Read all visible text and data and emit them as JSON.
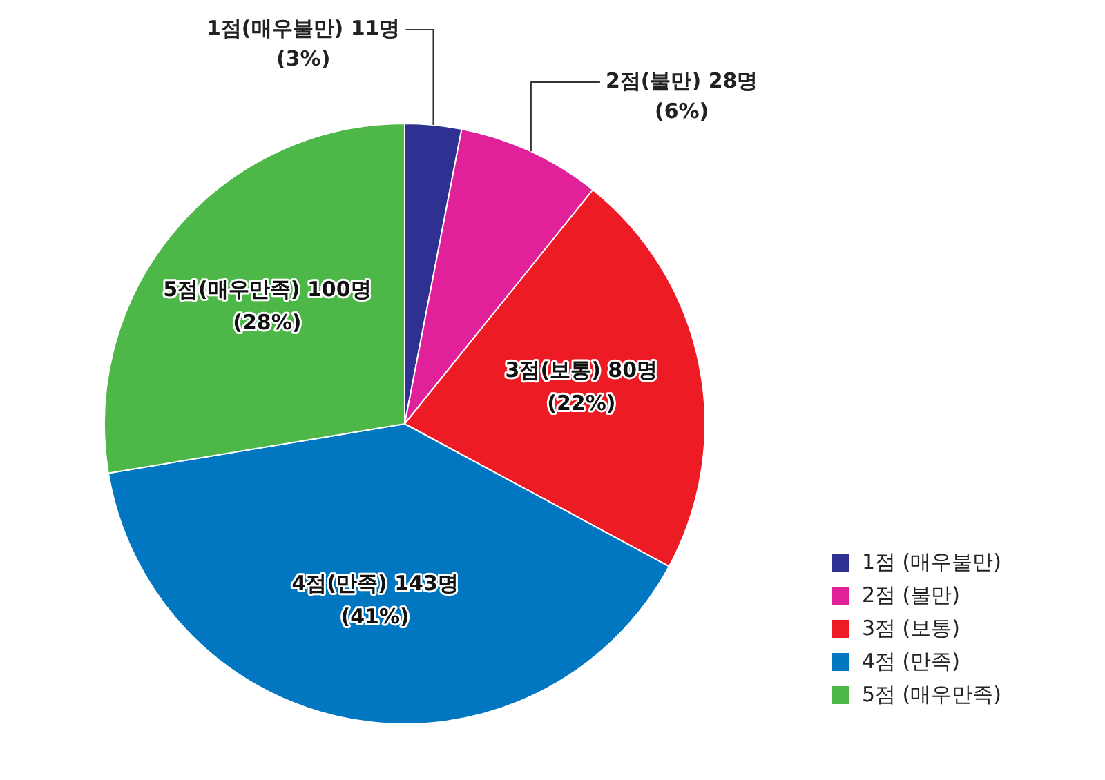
{
  "chart_data": {
    "type": "pie",
    "categories": [
      "1점 (매우불만)",
      "2점 (불만)",
      "3점 (보통)",
      "4점 (만족)",
      "5점 (매우만족)"
    ],
    "values": [
      11,
      28,
      80,
      143,
      100
    ],
    "colors": [
      "#2e3192",
      "#e0219a",
      "#ed1c24",
      "#0077c0",
      "#4db848"
    ],
    "value_labels": [
      "1점(매우불만) 11명\n(3%)",
      "2점(불만) 28명\n(6%)",
      "3점(보통) 80명\n(22%)",
      "4점(만족) 143명\n(41%)",
      "5점(매우만족) 100명\n(28%)"
    ],
    "legend": "bottom right"
  }
}
